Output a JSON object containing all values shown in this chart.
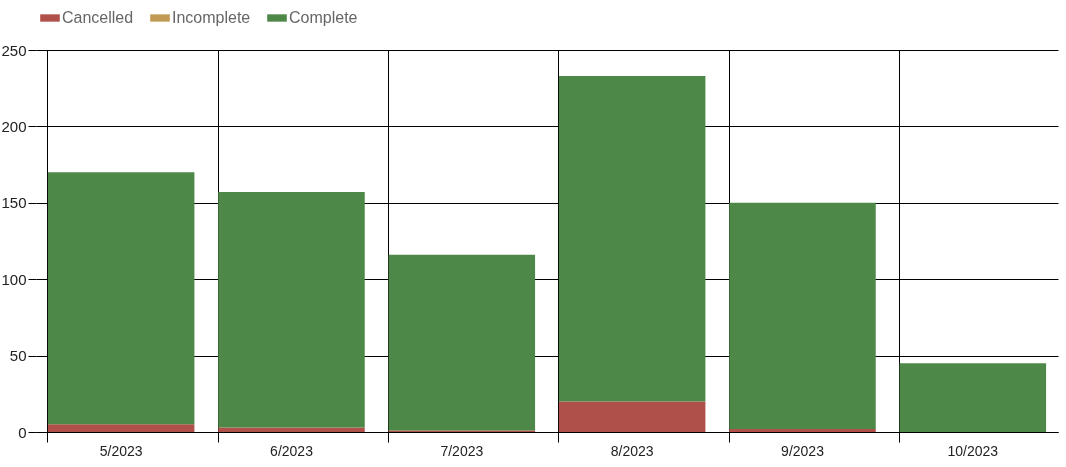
{
  "chart_data": {
    "type": "bar",
    "stacked": true,
    "categories": [
      "5/2023",
      "6/2023",
      "7/2023",
      "8/2023",
      "9/2023",
      "10/2023"
    ],
    "series": [
      {
        "name": "Cancelled",
        "color": "#b0504a",
        "values": [
          5,
          3,
          1,
          20,
          2,
          0
        ]
      },
      {
        "name": "Incomplete",
        "color": "#c09a55",
        "values": [
          0,
          0,
          0,
          0,
          0,
          0
        ]
      },
      {
        "name": "Complete",
        "color": "#4e8848",
        "values": [
          165,
          154,
          115,
          213,
          148,
          45
        ]
      }
    ],
    "ylim": [
      0,
      250
    ],
    "yticks": [
      0,
      50,
      100,
      150,
      200,
      250
    ],
    "grid": true,
    "legend": "top"
  }
}
